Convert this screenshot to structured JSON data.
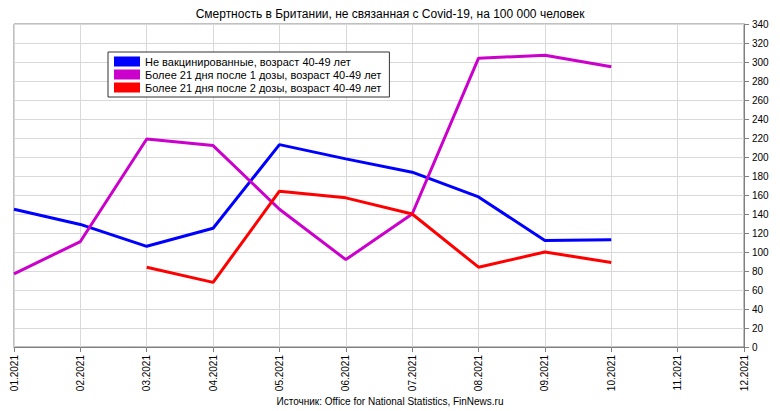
{
  "chart_data": {
    "type": "line",
    "title": "Смертность в Британии, не связанная с Covid-19, на 100 000 человек",
    "source": "Источник: Office for National Statistics, FinNews.ru",
    "categories": [
      "01.2021",
      "02.2021",
      "03.2021",
      "04.2021",
      "05.2021",
      "06.2021",
      "07.2021",
      "08.2021",
      "09.2021",
      "10.2021",
      "11.2021",
      "12.2021"
    ],
    "series": [
      {
        "name": "Не вакцинированные, возраст 40-49 лет",
        "color": "#0000ff",
        "values": [
          145,
          129,
          106,
          125,
          213,
          198,
          184,
          158,
          112,
          113,
          null,
          null
        ]
      },
      {
        "name": "Более 21 дня после 1 дозы, возраст 40-49 лет",
        "color": "#cc00cc",
        "values": [
          77,
          111,
          219,
          212,
          145,
          92,
          140,
          304,
          307,
          295,
          null,
          null
        ]
      },
      {
        "name": "Более 21 дня после 2 дозы, возраст 40-49 лет",
        "color": "#ff0000",
        "values": [
          null,
          null,
          84,
          68,
          164,
          157,
          140,
          84,
          100,
          89,
          null,
          null
        ]
      }
    ],
    "ylim": [
      0,
      340
    ],
    "yticks": [
      0,
      20,
      40,
      60,
      80,
      100,
      120,
      140,
      160,
      180,
      200,
      220,
      240,
      260,
      280,
      300,
      320,
      340
    ],
    "grid": true,
    "legend": "top-left"
  }
}
